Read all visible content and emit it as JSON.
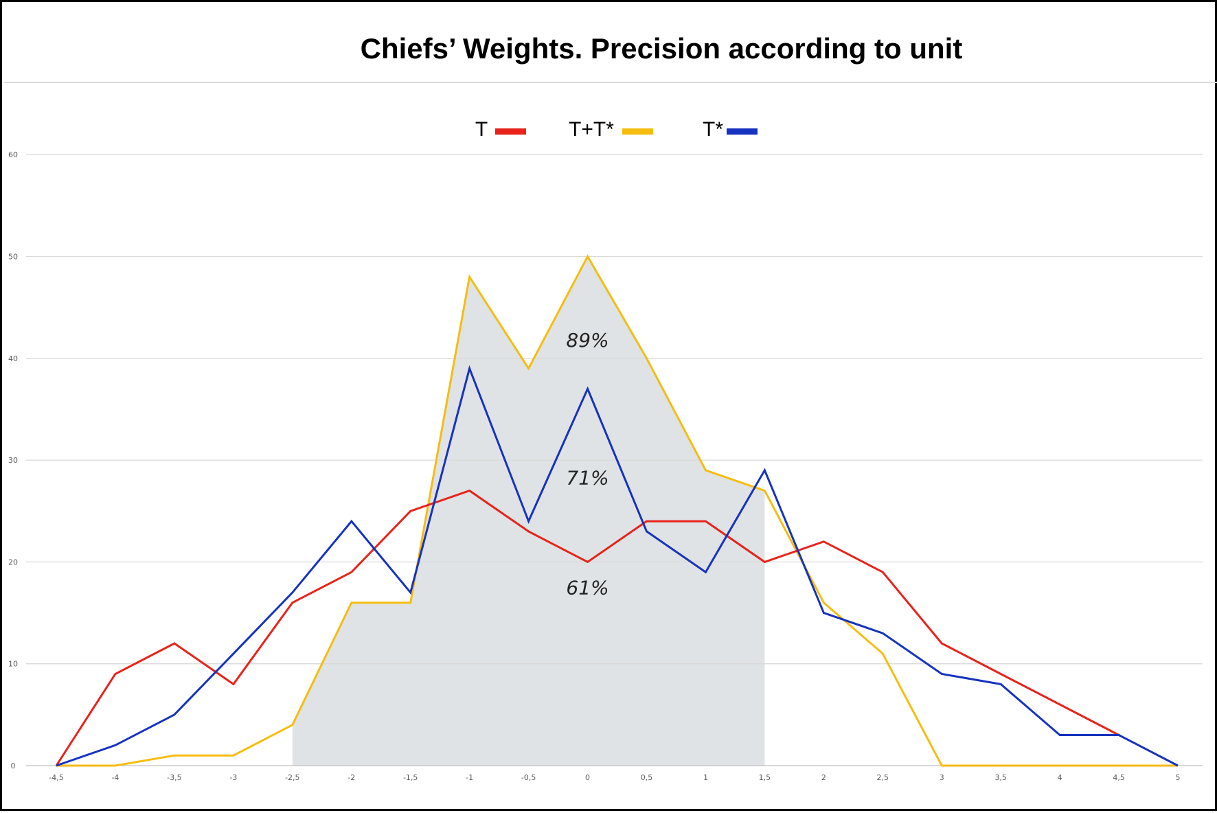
{
  "chart_data": {
    "type": "line",
    "title": "Chiefs’ Weights. Precision according to unit",
    "x": [
      "-4,5",
      "-4",
      "-3,5",
      "-3",
      "-2,5",
      "-2",
      "-1,5",
      "-1",
      "-0,5",
      "0",
      "0,5",
      "1",
      "1,5",
      "2",
      "2,5",
      "3",
      "3,5",
      "4",
      "4,5",
      "5"
    ],
    "series": [
      {
        "name": "T",
        "color": "#e8231b",
        "values": [
          0,
          9,
          12,
          8,
          16,
          19,
          25,
          27,
          23,
          20,
          24,
          24,
          20,
          22,
          19,
          12,
          9,
          6,
          3,
          null
        ]
      },
      {
        "name": "T+T*",
        "color": "#f5bd10",
        "values": [
          0,
          0,
          1,
          1,
          4,
          16,
          16,
          48,
          39,
          50,
          40,
          29,
          27,
          16,
          11,
          0,
          0,
          0,
          0,
          0
        ]
      },
      {
        "name": "T*",
        "color": "#1632c0",
        "values": [
          0,
          2,
          5,
          11,
          17,
          24,
          17,
          39,
          24,
          37,
          23,
          19,
          29,
          15,
          13,
          9,
          8,
          3,
          3,
          0
        ]
      }
    ],
    "yticks": [
      0,
      10,
      20,
      30,
      40,
      50,
      60
    ],
    "ylim": [
      0,
      60
    ],
    "grid": true,
    "legend_position": "top-center",
    "shaded_range": {
      "from": "-2,5",
      "to": "1,5",
      "color": "#e0e3e5"
    },
    "annotations": [
      {
        "text": "89%",
        "x": "0",
        "y": 41.8
      },
      {
        "text": "71%",
        "x": "0",
        "y": 28.3
      },
      {
        "text": "61%",
        "x": "0",
        "y": 17.5
      }
    ]
  }
}
